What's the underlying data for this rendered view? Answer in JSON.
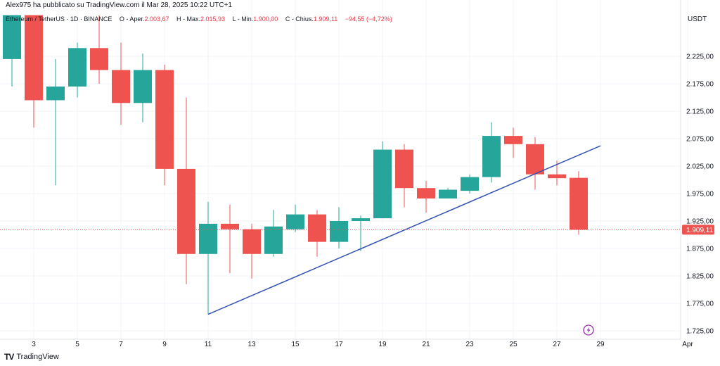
{
  "header": {
    "publisher": "Alex975 ha pubblicato su TradingView.com il Mar 28, 2025 10:22 UTC+1",
    "symbol": "Ethereum / TetherUS · 1D · BINANCE",
    "open_label": "O - Aper.",
    "open_value": "2.003,67",
    "high_label": "H - Max.",
    "high_value": "2.015,93",
    "low_label": "L - Min.",
    "low_value": "1.900,00",
    "close_label": "C - Chius.",
    "close_value": "1.909,11",
    "change_value": "−94,55 (−4,72%)"
  },
  "footer": {
    "brand": "TradingView",
    "logo_icon": "tradingview-logo-icon"
  },
  "chart_data": {
    "type": "candlestick",
    "currency": "USDT",
    "ylim": [
      1710,
      2300
    ],
    "y_ticks": [
      1725,
      1775,
      1825,
      1875,
      1925,
      1975,
      2025,
      2075,
      2125,
      2175,
      2225
    ],
    "y_tick_labels": [
      "1.725,00",
      "1.775,00",
      "1.825,00",
      "1.875,00",
      "1.925,00",
      "1.975,00",
      "2.025,00",
      "2.075,00",
      "2.125,00",
      "2.175,00",
      "2.225,00"
    ],
    "x_tick_days": [
      3,
      5,
      7,
      9,
      11,
      13,
      15,
      17,
      19,
      21,
      23,
      25,
      27,
      29,
      33
    ],
    "x_tick_labels": [
      "3",
      "5",
      "7",
      "9",
      "11",
      "13",
      "15",
      "17",
      "19",
      "21",
      "23",
      "25",
      "27",
      "29",
      "Apr"
    ],
    "current_price": 1909.11,
    "current_price_label": "1.909,11",
    "colors": {
      "up": "#26a69a",
      "down": "#ef5350",
      "trendline": "#3454b4",
      "price_line": "#ef5350"
    },
    "candles": [
      {
        "day": 2,
        "o": 2220,
        "h": 2300,
        "l": 2170,
        "c": 2300
      },
      {
        "day": 3,
        "o": 2300,
        "h": 2300,
        "l": 2095,
        "c": 2145
      },
      {
        "day": 4,
        "o": 2145,
        "h": 2220,
        "l": 1990,
        "c": 2170
      },
      {
        "day": 5,
        "o": 2170,
        "h": 2250,
        "l": 2150,
        "c": 2240
      },
      {
        "day": 6,
        "o": 2240,
        "h": 2300,
        "l": 2175,
        "c": 2200
      },
      {
        "day": 7,
        "o": 2200,
        "h": 2250,
        "l": 2100,
        "c": 2140
      },
      {
        "day": 8,
        "o": 2140,
        "h": 2230,
        "l": 2105,
        "c": 2200
      },
      {
        "day": 9,
        "o": 2200,
        "h": 2210,
        "l": 1990,
        "c": 2020
      },
      {
        "day": 10,
        "o": 2020,
        "h": 2150,
        "l": 1810,
        "c": 1865
      },
      {
        "day": 11,
        "o": 1865,
        "h": 1960,
        "l": 1755,
        "c": 1920
      },
      {
        "day": 12,
        "o": 1920,
        "h": 1955,
        "l": 1830,
        "c": 1910
      },
      {
        "day": 13,
        "o": 1910,
        "h": 1920,
        "l": 1820,
        "c": 1865
      },
      {
        "day": 14,
        "o": 1865,
        "h": 1945,
        "l": 1860,
        "c": 1915
      },
      {
        "day": 15,
        "o": 1910,
        "h": 1955,
        "l": 1905,
        "c": 1937
      },
      {
        "day": 16,
        "o": 1937,
        "h": 1945,
        "l": 1860,
        "c": 1887
      },
      {
        "day": 17,
        "o": 1887,
        "h": 1950,
        "l": 1875,
        "c": 1925
      },
      {
        "day": 18,
        "o": 1925,
        "h": 1935,
        "l": 1870,
        "c": 1930
      },
      {
        "day": 19,
        "o": 1930,
        "h": 2070,
        "l": 1930,
        "c": 2055
      },
      {
        "day": 20,
        "o": 2055,
        "h": 2065,
        "l": 1950,
        "c": 1985
      },
      {
        "day": 21,
        "o": 1985,
        "h": 1998,
        "l": 1940,
        "c": 1966
      },
      {
        "day": 22,
        "o": 1966,
        "h": 1985,
        "l": 1966,
        "c": 1982
      },
      {
        "day": 23,
        "o": 1980,
        "h": 2010,
        "l": 1975,
        "c": 2005
      },
      {
        "day": 24,
        "o": 2005,
        "h": 2105,
        "l": 1995,
        "c": 2080
      },
      {
        "day": 25,
        "o": 2080,
        "h": 2095,
        "l": 2040,
        "c": 2065
      },
      {
        "day": 26,
        "o": 2065,
        "h": 2078,
        "l": 1982,
        "c": 2010
      },
      {
        "day": 27,
        "o": 2010,
        "h": 2035,
        "l": 1990,
        "c": 2003
      },
      {
        "day": 28,
        "o": 2003.67,
        "h": 2015.93,
        "l": 1900,
        "c": 1909.11
      }
    ],
    "trendline": {
      "from": {
        "day": 11,
        "price": 1755
      },
      "to": {
        "day": 29,
        "price": 2062
      }
    }
  }
}
